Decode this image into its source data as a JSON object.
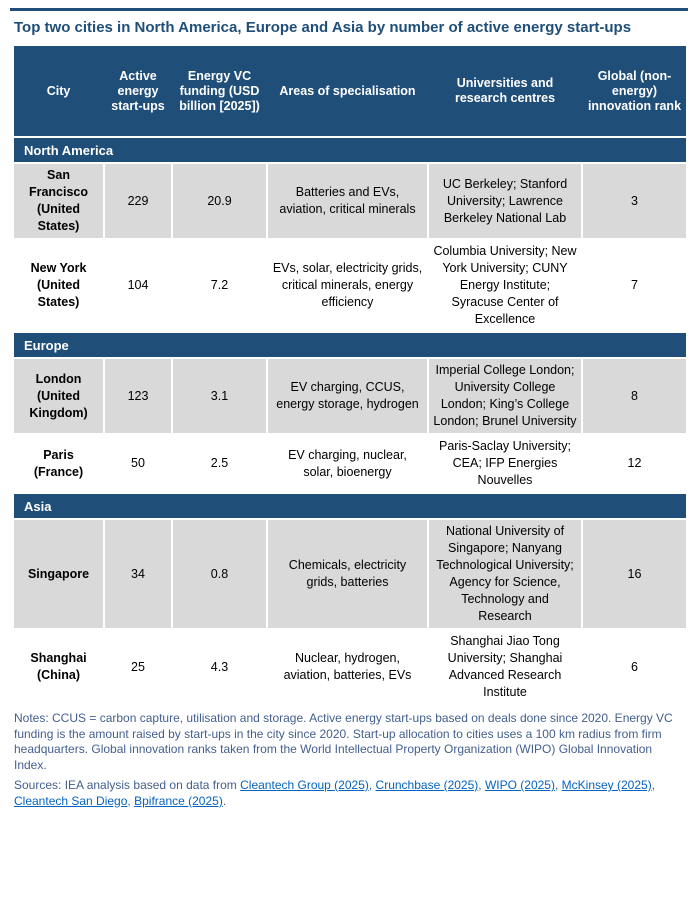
{
  "title": "Top two cities in North America, Europe and Asia by number of active energy start-ups",
  "colors": {
    "header_navy": "#1F4E79",
    "row_gray": "#D9D9D9",
    "notes_text": "#435F8F",
    "link_blue": "#0563C1"
  },
  "table": {
    "columns": [
      "City",
      "Active energy start-ups",
      "Energy VC funding (USD billion [2025])",
      "Areas of specialisation",
      "Universities and research centres",
      "Global (non-energy) innovation rank"
    ],
    "sections": [
      {
        "name": "North America",
        "rows": [
          {
            "city": "San Francisco (United States)",
            "startups": "229",
            "funding": "20.9",
            "areas": "Batteries and EVs, aviation, critical minerals",
            "universities": "UC Berkeley; Stanford University; Lawrence Berkeley National Lab",
            "rank": "3"
          },
          {
            "city": "New York (United States)",
            "startups": "104",
            "funding": "7.2",
            "areas": "EVs, solar, electricity grids, critical minerals, energy efficiency",
            "universities": "Columbia University; New York University; CUNY Energy Institute; Syracuse Center of Excellence",
            "rank": "7"
          }
        ]
      },
      {
        "name": "Europe",
        "rows": [
          {
            "city": "London (United Kingdom)",
            "startups": "123",
            "funding": "3.1",
            "areas": "EV charging, CCUS, energy storage, hydrogen",
            "universities": "Imperial College London; University College London; King’s College London; Brunel University",
            "rank": "8"
          },
          {
            "city": "Paris (France)",
            "startups": "50",
            "funding": "2.5",
            "areas": "EV charging, nuclear, solar, bioenergy",
            "universities": "Paris-Saclay University; CEA; IFP Energies Nouvelles",
            "rank": "12"
          }
        ]
      },
      {
        "name": "Asia",
        "rows": [
          {
            "city": "Singapore",
            "startups": "34",
            "funding": "0.8",
            "areas": "Chemicals, electricity grids, batteries",
            "universities": "National University of Singapore; Nanyang Technological University; Agency for Science, Technology and Research",
            "rank": "16"
          },
          {
            "city": "Shanghai (China)",
            "startups": "25",
            "funding": "4.3",
            "areas": "Nuclear, hydrogen, aviation, batteries, EVs",
            "universities": "Shanghai Jiao Tong University; Shanghai Advanced Research Institute",
            "rank": "6"
          }
        ]
      }
    ]
  },
  "notes": "Notes: CCUS = carbon capture, utilisation and storage. Active energy start-ups based on deals done since 2020. Energy VC funding is the amount raised by start-ups in the city since 2020. Start-up allocation to cities uses a 100 km radius from firm headquarters. Global innovation ranks taken from the World Intellectual Property Organization (WIPO) Global Innovation Index.",
  "sources": {
    "prefix": "Sources: IEA analysis based on data from ",
    "links": [
      "Cleantech Group (2025)",
      "Crunchbase (2025)",
      "WIPO (2025)",
      "McKinsey (2025)",
      "Cleantech San Diego",
      "Bpifrance (2025)"
    ],
    "separator": ", ",
    "suffix": "."
  }
}
